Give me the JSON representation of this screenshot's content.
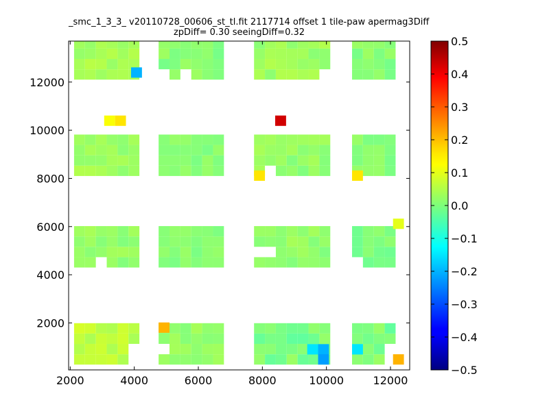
{
  "chart_data": {
    "type": "heatmap",
    "title": "_smc_1_3_3_ v20110728_00606_st_tl.fit 2117714 offset 1 tile-paw apermag3Diff",
    "subtitle": "zpDiff= 0.30 seeingDiff=0.32",
    "xlabel": "",
    "ylabel": "",
    "xlim": [
      1950,
      12600
    ],
    "ylim": [
      50,
      13700
    ],
    "x_ticks": [
      2000,
      4000,
      6000,
      8000,
      10000,
      12000
    ],
    "y_ticks": [
      2000,
      4000,
      6000,
      8000,
      10000,
      12000
    ],
    "cell_size": [
      340,
      430
    ],
    "grid": false,
    "colorbar": {
      "colormap": "jet",
      "range": [
        -0.5,
        0.5
      ],
      "ticks": [
        0.5,
        0.4,
        0.3,
        0.2,
        0.1,
        0.0,
        -0.1,
        -0.2,
        -0.3,
        -0.4,
        -0.5
      ],
      "tick_labels": [
        "0.5",
        "0.4",
        "0.3",
        "0.2",
        "0.1",
        "0.0",
        "−0.1",
        "−0.2",
        "−0.3",
        "−0.4",
        "−0.5"
      ]
    },
    "tiles": [
      {
        "x_start": 2120,
        "y_start": 270,
        "nx": 6,
        "ny": 4,
        "mean": 0.06,
        "jitter": 0.025,
        "missing": [
          [
            5,
            0
          ],
          [
            5,
            1
          ]
        ]
      },
      {
        "x_start": 4760,
        "y_start": 270,
        "nx": 6,
        "ny": 4,
        "mean": 0.02,
        "jitter": 0.02,
        "missing": [
          [
            0,
            1
          ]
        ]
      },
      {
        "x_start": 7740,
        "y_start": 270,
        "nx": 7,
        "ny": 4,
        "mean": 0.0,
        "jitter": 0.03,
        "missing": []
      },
      {
        "x_start": 10800,
        "y_start": 270,
        "nx": 4,
        "ny": 4,
        "mean": 0.0,
        "jitter": 0.03,
        "missing": [
          [
            3,
            1
          ],
          [
            3,
            0
          ]
        ]
      },
      {
        "x_start": 2120,
        "y_start": 4300,
        "nx": 6,
        "ny": 4,
        "mean": 0.02,
        "jitter": 0.02,
        "missing": [
          [
            2,
            0
          ]
        ]
      },
      {
        "x_start": 4760,
        "y_start": 4300,
        "nx": 6,
        "ny": 4,
        "mean": 0.01,
        "jitter": 0.015,
        "missing": []
      },
      {
        "x_start": 7740,
        "y_start": 4300,
        "nx": 7,
        "ny": 4,
        "mean": 0.02,
        "jitter": 0.02,
        "missing": [
          [
            0,
            1
          ],
          [
            1,
            1
          ]
        ]
      },
      {
        "x_start": 10800,
        "y_start": 4300,
        "nx": 4,
        "ny": 4,
        "mean": 0.0,
        "jitter": 0.02,
        "missing": [
          [
            0,
            0
          ]
        ]
      },
      {
        "x_start": 2120,
        "y_start": 8100,
        "nx": 6,
        "ny": 4,
        "mean": 0.03,
        "jitter": 0.02,
        "missing": []
      },
      {
        "x_start": 4760,
        "y_start": 8100,
        "nx": 6,
        "ny": 4,
        "mean": 0.01,
        "jitter": 0.015,
        "missing": []
      },
      {
        "x_start": 7740,
        "y_start": 8100,
        "nx": 7,
        "ny": 4,
        "mean": 0.02,
        "jitter": 0.02,
        "missing": [
          [
            1,
            0
          ]
        ]
      },
      {
        "x_start": 10800,
        "y_start": 8100,
        "nx": 4,
        "ny": 4,
        "mean": 0.01,
        "jitter": 0.02,
        "missing": []
      },
      {
        "x_start": 2120,
        "y_start": 12100,
        "nx": 6,
        "ny": 4,
        "mean": 0.04,
        "jitter": 0.02,
        "missing": []
      },
      {
        "x_start": 4760,
        "y_start": 12100,
        "nx": 6,
        "ny": 4,
        "mean": 0.01,
        "jitter": 0.02,
        "missing": [
          [
            0,
            0
          ],
          [
            2,
            0
          ]
        ]
      },
      {
        "x_start": 7740,
        "y_start": 12100,
        "nx": 7,
        "ny": 4,
        "mean": 0.03,
        "jitter": 0.02,
        "missing": [
          [
            6,
            0
          ]
        ]
      },
      {
        "x_start": 10800,
        "y_start": 12100,
        "nx": 4,
        "ny": 4,
        "mean": 0.01,
        "jitter": 0.02,
        "missing": []
      }
    ],
    "highlights": [
      {
        "x": 3060,
        "y": 10180,
        "value": 0.12
      },
      {
        "x": 3400,
        "y": 10180,
        "value": 0.15
      },
      {
        "x": 8400,
        "y": 10180,
        "value": 0.42
      },
      {
        "x": 7740,
        "y": 7900,
        "value": 0.15
      },
      {
        "x": 10800,
        "y": 7900,
        "value": 0.15
      },
      {
        "x": 4760,
        "y": 1590,
        "value": 0.2
      },
      {
        "x": 12080,
        "y": 270,
        "value": 0.2
      },
      {
        "x": 12080,
        "y": 5900,
        "value": 0.1
      },
      {
        "x": 3900,
        "y": 12180,
        "value": -0.2
      },
      {
        "x": 9400,
        "y": 690,
        "value": -0.15
      },
      {
        "x": 9740,
        "y": 690,
        "value": -0.2
      },
      {
        "x": 9740,
        "y": 270,
        "value": -0.22
      },
      {
        "x": 10800,
        "y": 690,
        "value": -0.15
      }
    ]
  }
}
